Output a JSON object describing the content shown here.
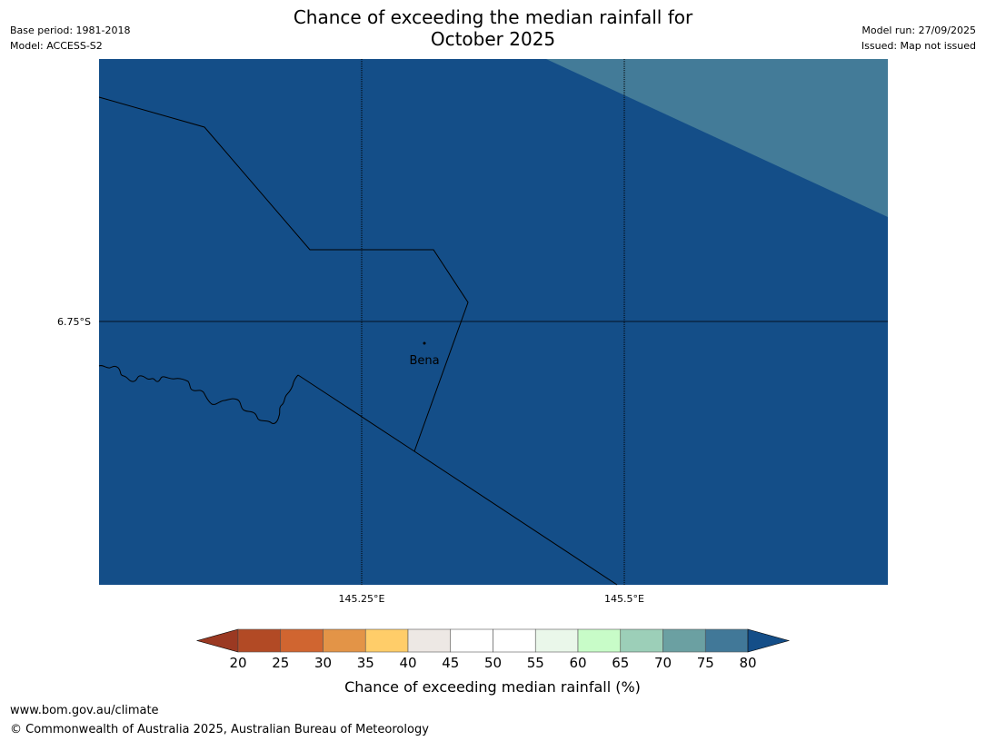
{
  "title": {
    "line1": "Chance of exceeding the median rainfall for",
    "line2": "October 2025"
  },
  "meta": {
    "base_period": "Base period: 1981-2018",
    "model": "Model: ACCESS-S2",
    "model_run": "Model run: 27/09/2025",
    "issued": "Issued: Map not issued"
  },
  "map": {
    "lat_label": "6.75°S",
    "lon_labels": [
      "145.25°E",
      "145.5°E"
    ],
    "place": "Bena",
    "colors": {
      "region_main": "#144e88",
      "region_upper": "#437b98"
    }
  },
  "colorbar": {
    "ticks": [
      "20",
      "25",
      "30",
      "35",
      "40",
      "45",
      "50",
      "55",
      "60",
      "65",
      "70",
      "75",
      "80"
    ],
    "colors": [
      "#9b3922",
      "#b24a25",
      "#d06530",
      "#e39447",
      "#ffcd69",
      "#ede8e4",
      "#ffffff",
      "#ffffff",
      "#eaf7ea",
      "#c8fcc8",
      "#9ccfb8",
      "#6ba0a2",
      "#417898",
      "#144e88"
    ],
    "label": "Chance of exceeding median rainfall (%)"
  },
  "footer": {
    "url": "www.bom.gov.au/climate",
    "copyright": "© Commonwealth of Australia 2025, Australian Bureau of Meteorology"
  }
}
